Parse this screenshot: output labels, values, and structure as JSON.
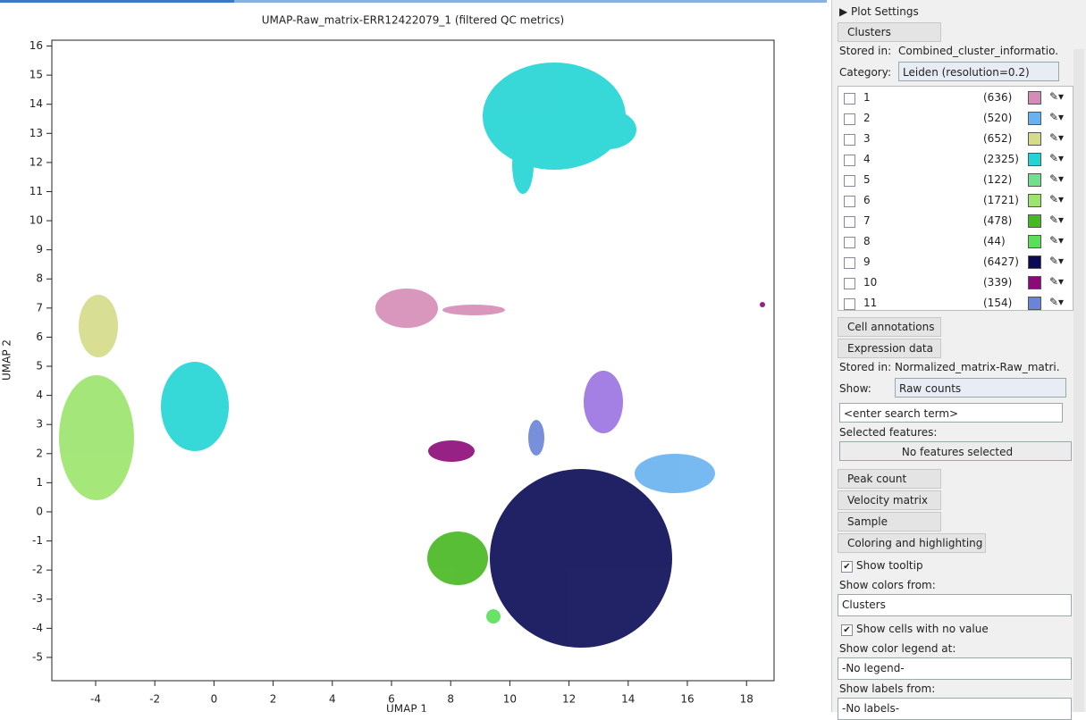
{
  "plot": {
    "title": "UMAP-Raw_matrix-ERR12422079_1 (filtered QC metrics)",
    "x_label": "UMAP 1",
    "y_label": "UMAP 2",
    "xlim": [
      -5.48,
      18.93
    ],
    "ylim": [
      -5.8,
      16.2
    ],
    "xticks": [
      -4,
      -2,
      0,
      2,
      4,
      6,
      8,
      10,
      12,
      14,
      16,
      18
    ],
    "yticks": [
      -5,
      -4,
      -3,
      -2,
      -1,
      0,
      1,
      2,
      3,
      4,
      5,
      6,
      7,
      8,
      9,
      10,
      11,
      12,
      13,
      14,
      15,
      16
    ]
  },
  "panel": {
    "header": "Plot Settings",
    "clusters_tab": "Clusters",
    "stored_in_label": "Stored in:",
    "stored_in_value": "Combined_cluster_informatio...",
    "category_label": "Category:",
    "category_value": "Leiden (resolution=0.2)",
    "clusters": [
      {
        "name": "1",
        "count": "(636)",
        "color": "#d68cb6"
      },
      {
        "name": "2",
        "count": "(520)",
        "color": "#68b2f0"
      },
      {
        "name": "3",
        "count": "(652)",
        "color": "#d4dc88"
      },
      {
        "name": "4",
        "count": "(2325)",
        "color": "#22d4d4"
      },
      {
        "name": "5",
        "count": "(122)",
        "color": "#70e08c"
      },
      {
        "name": "6",
        "count": "(1721)",
        "color": "#9ce46c"
      },
      {
        "name": "7",
        "count": "(478)",
        "color": "#46b820"
      },
      {
        "name": "8",
        "count": "(44)",
        "color": "#58e058"
      },
      {
        "name": "9",
        "count": "(6427)",
        "color": "#0a0a55"
      },
      {
        "name": "10",
        "count": "(339)",
        "color": "#8c0a78"
      },
      {
        "name": "11",
        "count": "(154)",
        "color": "#6a84d8"
      }
    ],
    "cell_annotations": "Cell annotations",
    "expression_data": "Expression data",
    "expr_stored_label": "Stored in:",
    "expr_stored_value": "Normalized_matrix-Raw_matri...",
    "show_label": "Show:",
    "show_value": "Raw counts",
    "search_placeholder": "<enter search term>",
    "selected_features_label": "Selected features:",
    "selected_features_value": "No features selected",
    "peak_count": "Peak count matrix",
    "velocity": "Velocity matrix",
    "sample": "Sample",
    "coloring": "Coloring and highlighting",
    "show_tooltip": "Show tooltip",
    "show_colors_label": "Show colors from:",
    "show_colors_value": "Clusters",
    "show_no_value": "Show cells with no value",
    "legend_label": "Show color legend at:",
    "legend_value": "-No legend-",
    "labels_label": "Show labels from:",
    "labels_value": "-No labels-"
  }
}
